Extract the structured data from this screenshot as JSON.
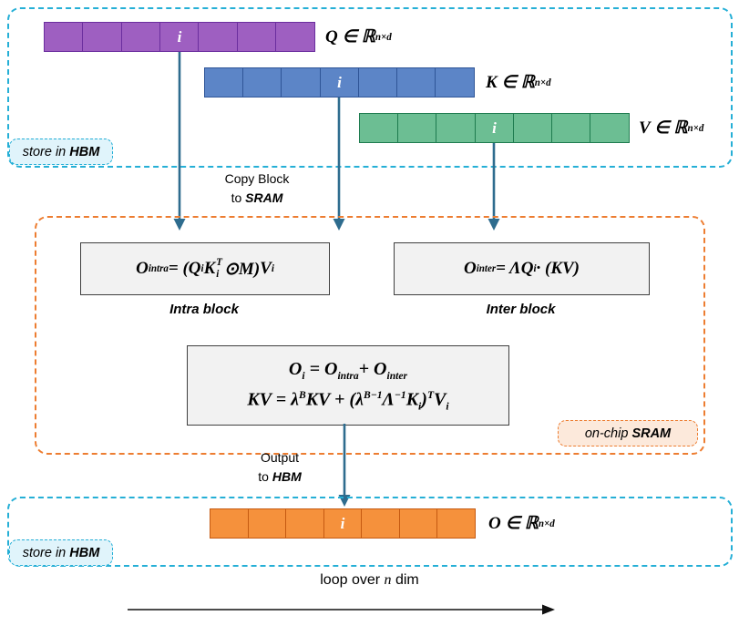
{
  "colors": {
    "hbm_border": "#25AFD6",
    "sram_border": "#ED7D31",
    "arrow": "#2E6C8E",
    "formula_box_fill": "#F2F2F2",
    "q_fill": "#9E5FC1",
    "q_border": "#6B2E9E",
    "k_fill": "#5C85C7",
    "k_border": "#2F5597",
    "v_fill": "#6CBE93",
    "v_border": "#1E7B4F",
    "o_fill": "#F5913C",
    "o_border": "#C55A11"
  },
  "bars": {
    "q": {
      "cells": 7,
      "i_index": 3,
      "i_label": "i",
      "fill": "#9E5FC1",
      "border": "#6B2E9E"
    },
    "k": {
      "cells": 7,
      "i_index": 3,
      "i_label": "i",
      "fill": "#5C85C7",
      "border": "#2F5597"
    },
    "v": {
      "cells": 7,
      "i_index": 3,
      "i_label": "i",
      "fill": "#6CBE93",
      "border": "#1E7B4F"
    },
    "o": {
      "cells": 7,
      "i_index": 3,
      "i_label": "i",
      "fill": "#F5913C",
      "border": "#C55A11"
    }
  },
  "labels": {
    "q": [
      {
        "t": "Q ∈ ℝ",
        "sup": "n×d"
      }
    ],
    "k": [
      {
        "t": "K ∈ ℝ",
        "sup": "n×d"
      }
    ],
    "v": [
      {
        "t": "V ∈ ℝ",
        "sup": "n×d"
      }
    ],
    "o": [
      {
        "t": "O ∈ ℝ",
        "sup": "n×d"
      }
    ]
  },
  "formulas": {
    "intra": [
      {
        "t": "O",
        "sub": "intra"
      },
      {
        "t": " = ("
      },
      {
        "t": "Q",
        "sub": "i"
      },
      {
        "t": "K",
        "sup": "T",
        "sub": "i"
      },
      {
        "t": "⊙M)"
      },
      {
        "t": "V",
        "sub": "i"
      }
    ],
    "inter": [
      {
        "t": "O",
        "sub": "inter"
      },
      {
        "t": " = ΛQ",
        "sub": "i"
      },
      {
        "t": " · (KV)"
      }
    ],
    "combined1": [
      {
        "t": "O",
        "sub": "i"
      },
      {
        "t": " = O",
        "sub": "intra"
      },
      {
        "t": "+ O",
        "sub": "inter"
      }
    ],
    "combined2": [
      {
        "t": "KV = λ",
        "sup": "B"
      },
      {
        "t": "KV + (λ",
        "sup": "B−1"
      },
      {
        "t": "Λ",
        "sup": "−1"
      },
      {
        "t": "K",
        "sub": "i"
      },
      {
        "t": ")",
        "sup": "T"
      },
      {
        "t": "V",
        "sub": "i"
      }
    ]
  },
  "block_labels": {
    "intra": "Intra block",
    "inter": "Inter block"
  },
  "tags": {
    "hbm": {
      "prefix": "store in ",
      "em": "HBM"
    },
    "sram": {
      "prefix": "on-chip ",
      "em": "SRAM"
    }
  },
  "notes": {
    "copy": {
      "line1": "Copy Block",
      "line2_prefix": "to ",
      "line2_em": "SRAM"
    },
    "output": {
      "line1": "Output",
      "line2_prefix": "to ",
      "line2_em": "HBM"
    }
  },
  "loop": {
    "prefix": "loop over ",
    "var": "n",
    "suffix": " dim"
  }
}
